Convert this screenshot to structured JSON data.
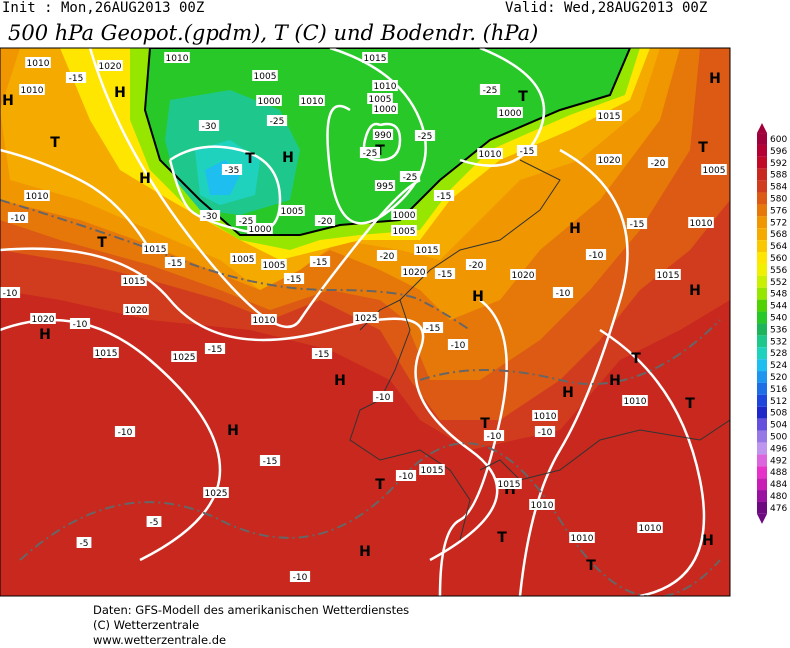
{
  "header": {
    "init": "Init : Mon,26AUG2013 00Z",
    "valid": "Valid: Wed,28AUG2013 00Z",
    "title": "500 hPa Geopot.(gpdm), T (C) und Bodendr. (hPa)"
  },
  "colorbar": {
    "labels": [
      600,
      596,
      592,
      588,
      584,
      580,
      576,
      572,
      568,
      564,
      560,
      556,
      552,
      548,
      544,
      540,
      536,
      532,
      528,
      524,
      520,
      516,
      512,
      508,
      504,
      500,
      496,
      492,
      488,
      484,
      480,
      476
    ],
    "colors": [
      "#a0003c",
      "#b40032",
      "#c00a28",
      "#c8281e",
      "#d23c1e",
      "#dc5a14",
      "#e6780a",
      "#f09600",
      "#f5aa00",
      "#fac800",
      "#ffe600",
      "#f0f000",
      "#c8f000",
      "#96e600",
      "#50d200",
      "#28c828",
      "#1eb45a",
      "#1ec88c",
      "#1ed2be",
      "#1ebef0",
      "#1e96f0",
      "#1e6ee6",
      "#1e46dc",
      "#1e28c8",
      "#6450dc",
      "#9678e6",
      "#be96f0",
      "#dc64dc",
      "#e632c8",
      "#c81eb4",
      "#9a10a0",
      "#6e0a80"
    ]
  },
  "map": {
    "labels": [
      "H",
      "H",
      "H",
      "T",
      "T",
      "H",
      "T",
      "H",
      "T",
      "T",
      "T",
      "H",
      "H",
      "H",
      "H",
      "T",
      "H",
      "T",
      "H",
      "H",
      "T",
      "H",
      "T",
      "T",
      "H",
      "T",
      "H",
      "T",
      "H",
      "1010",
      "1020",
      "1010",
      "1015",
      "1010",
      "1005",
      "1010",
      "1000",
      "1010",
      "1005",
      "1000",
      "990",
      "995",
      "1000",
      "1005",
      "1005",
      "1000",
      "1005",
      "1005",
      "1010",
      "1015",
      "1015",
      "1020",
      "1010",
      "1025",
      "1020",
      "1015",
      "1020",
      "1020",
      "1005",
      "1010",
      "1015",
      "1015",
      "1000",
      "1010",
      "1010",
      "1010",
      "1015",
      "1015",
      "1010",
      "1010",
      "1010",
      "1025",
      "1025",
      "1020",
      "1015",
      "-15",
      "-30",
      "-25",
      "-35",
      "-30",
      "-25",
      "-20",
      "-25",
      "-25",
      "-25",
      "-25",
      "-15",
      "-20",
      "-15",
      "-10",
      "-10",
      "-15",
      "-15",
      "-15",
      "-20",
      "-15",
      "-15",
      "-20",
      "-10",
      "-10",
      "-10",
      "-15",
      "-15",
      "-15",
      "-10",
      "-10",
      "-10",
      "-15",
      "-10",
      "-10",
      "-10",
      "-5",
      "-5",
      "-10"
    ]
  },
  "footer": {
    "lines": [
      "Daten: GFS-Modell des amerikanischen Wetterdienstes",
      "(C) Wetterzentrale",
      "www.wetterzentrale.de"
    ]
  }
}
